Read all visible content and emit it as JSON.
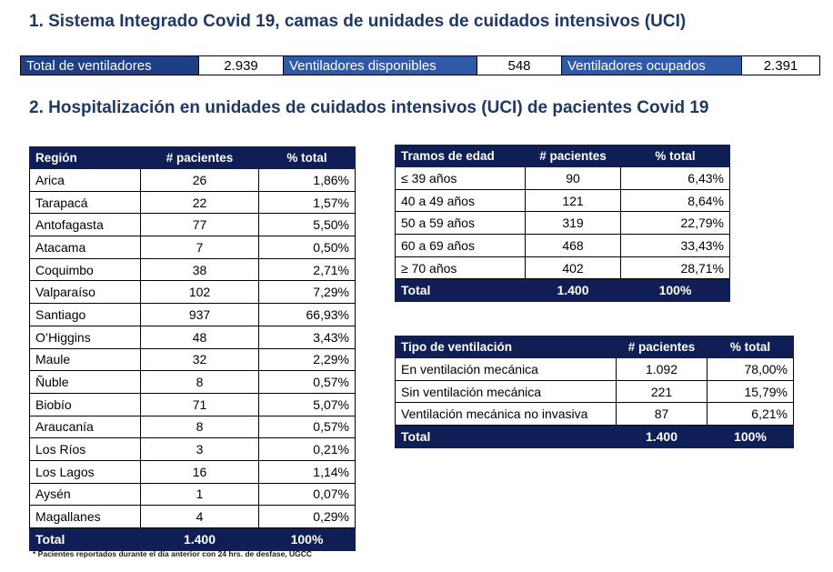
{
  "section1_title": "1. Sistema Integrado Covid 19, camas de unidades de cuidados intensivos (UCI)",
  "summary": {
    "total_label": "Total de ventiladores",
    "total_value": "2.939",
    "disponibles_label": "Ventiladores disponibles",
    "disponibles_value": "548",
    "ocupados_label": "Ventiladores ocupados",
    "ocupados_value": "2.391"
  },
  "section2_title": "2. Hospitalización en unidades de cuidados intensivos (UCI) de pacientes Covid 19",
  "region_table": {
    "headers": [
      "Región",
      "# pacientes",
      "% total"
    ],
    "rows": [
      [
        "Arica",
        "26",
        "1,86%"
      ],
      [
        "Tarapacá",
        "22",
        "1,57%"
      ],
      [
        "Antofagasta",
        "77",
        "5,50%"
      ],
      [
        "Atacama",
        "7",
        "0,50%"
      ],
      [
        "Coquimbo",
        "38",
        "2,71%"
      ],
      [
        "Valparaíso",
        "102",
        "7,29%"
      ],
      [
        "Santiago",
        "937",
        "66,93%"
      ],
      [
        "O’Higgins",
        "48",
        "3,43%"
      ],
      [
        "Maule",
        "32",
        "2,29%"
      ],
      [
        "Ñuble",
        "8",
        "0,57%"
      ],
      [
        "Biobío",
        "71",
        "5,07%"
      ],
      [
        "Araucanía",
        "8",
        "0,57%"
      ],
      [
        "Los Ríos",
        "3",
        "0,21%"
      ],
      [
        "Los Lagos",
        "16",
        "1,14%"
      ],
      [
        "Aysén",
        "1",
        "0,07%"
      ],
      [
        "Magallanes",
        "4",
        "0,29%"
      ]
    ],
    "total": [
      "Total",
      "1.400",
      "100%"
    ]
  },
  "age_table": {
    "headers": [
      "Tramos de edad",
      "# pacientes",
      "% total"
    ],
    "rows": [
      [
        "≤ 39 años",
        "90",
        "6,43%"
      ],
      [
        "40 a 49 años",
        "121",
        "8,64%"
      ],
      [
        "50 a 59 años",
        "319",
        "22,79%"
      ],
      [
        "60 a 69 años",
        "468",
        "33,43%"
      ],
      [
        "≥ 70 años",
        "402",
        "28,71%"
      ]
    ],
    "total": [
      "Total",
      "1.400",
      "100%"
    ]
  },
  "vent_table": {
    "headers": [
      "Tipo de ventilación",
      "# pacientes",
      "% total"
    ],
    "rows": [
      [
        "En ventilación mecánica",
        "1.092",
        "78,00%"
      ],
      [
        "Sin ventilación mecánica",
        "221",
        "15,79%"
      ],
      [
        "Ventilación mecánica no invasiva",
        "87",
        "6,21%"
      ]
    ],
    "total": [
      "Total",
      "1.400",
      "100%"
    ]
  },
  "footnote": "* Pacientes reportados durante el día anterior con 24 hrs. de desfase, UGCC"
}
